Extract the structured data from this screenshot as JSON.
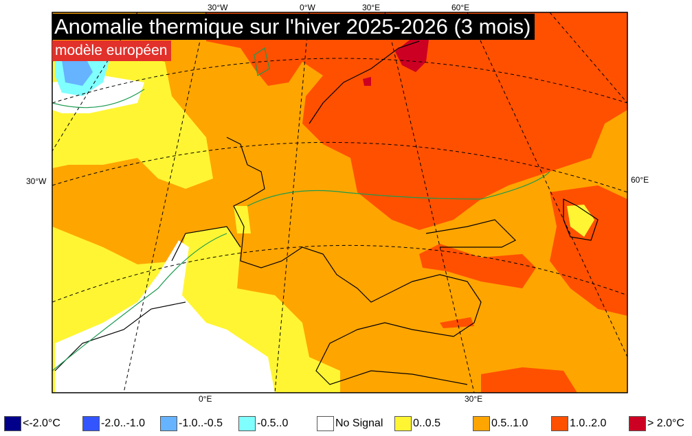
{
  "title": "Anomalie thermique sur l'hiver 2025-2026 (3 mois)",
  "subtitle": "modèle européen",
  "axis_labels": {
    "top": [
      "30°W",
      "0°W",
      "30°E",
      "60°E"
    ],
    "left": "30°W",
    "right": "60°E",
    "bottom": [
      "0°E",
      "30°E"
    ]
  },
  "legend": [
    {
      "label": "<-2.0°C",
      "color": "#00008b"
    },
    {
      "label": "-2.0..-1.0",
      "color": "#3355ff"
    },
    {
      "label": "-1.0..-0.5",
      "color": "#66b3ff"
    },
    {
      "label": "-0.5..0",
      "color": "#80ffff"
    },
    {
      "label": "No Signal",
      "color": "#ffffff"
    },
    {
      "label": "0..0.5",
      "color": "#fff533"
    },
    {
      "label": "0.5..1.0",
      "color": "#ffa500"
    },
    {
      "label": "1.0..2.0",
      "color": "#ff5000"
    },
    {
      "label": "> 2.0°C",
      "color": "#cc0022"
    }
  ]
}
